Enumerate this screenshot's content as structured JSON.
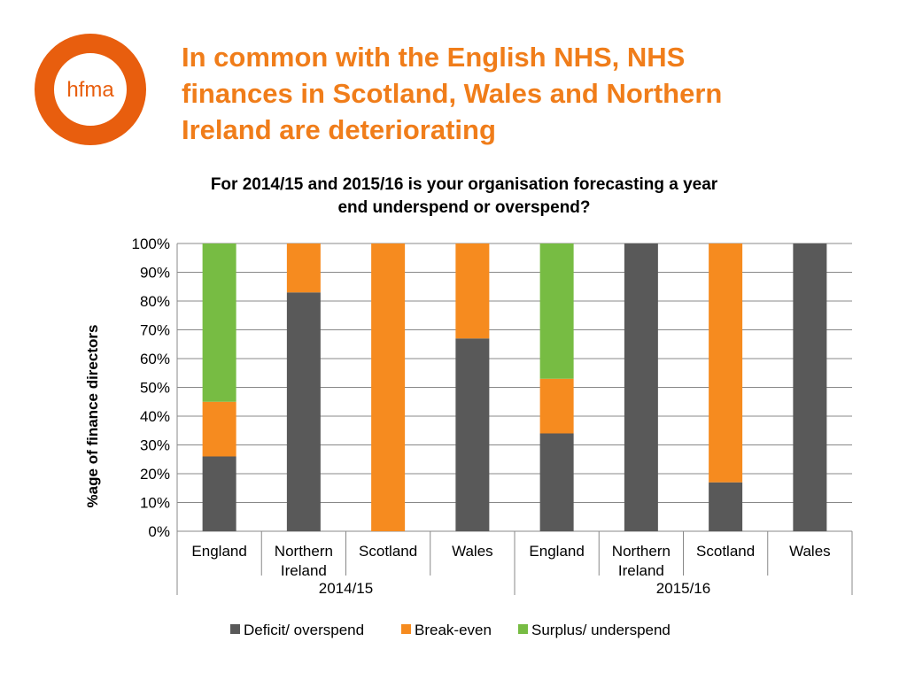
{
  "logo": {
    "text": "hfma",
    "color": "#e85e0e"
  },
  "slide_title_lines": [
    "In common with the English NHS, NHS",
    "finances in Scotland, Wales and Northern",
    "Ireland are deteriorating"
  ],
  "chart_data": {
    "type": "bar",
    "stacked": true,
    "percent_stacked": true,
    "title_lines": [
      "For 2014/15 and 2015/16 is your organisation forecasting a year",
      "end underspend or overspend?"
    ],
    "ylabel": "%age of finance directors",
    "xlabel": "",
    "ylim": [
      0,
      100
    ],
    "yticks": [
      "0%",
      "10%",
      "20%",
      "30%",
      "40%",
      "50%",
      "60%",
      "70%",
      "80%",
      "90%",
      "100%"
    ],
    "grid": true,
    "legend_position": "bottom",
    "categories": [
      [
        "England"
      ],
      [
        "Northern",
        "Ireland"
      ],
      [
        "Scotland"
      ],
      [
        "Wales"
      ],
      [
        "England"
      ],
      [
        "Northern",
        "Ireland"
      ],
      [
        "Scotland"
      ],
      [
        "Wales"
      ]
    ],
    "groups": [
      {
        "label": "2014/15",
        "span": 4
      },
      {
        "label": "2015/16",
        "span": 4
      }
    ],
    "series": [
      {
        "name": "Deficit/ overspend",
        "color": "#595959",
        "values": [
          26,
          83,
          0,
          67,
          34,
          100,
          17,
          100
        ]
      },
      {
        "name": "Break-even",
        "color": "#f68b1f",
        "values": [
          19,
          17,
          100,
          33,
          19,
          0,
          83,
          0
        ]
      },
      {
        "name": "Surplus/ underspend",
        "color": "#77bc43",
        "values": [
          55,
          0,
          0,
          0,
          47,
          0,
          0,
          0
        ]
      }
    ]
  }
}
